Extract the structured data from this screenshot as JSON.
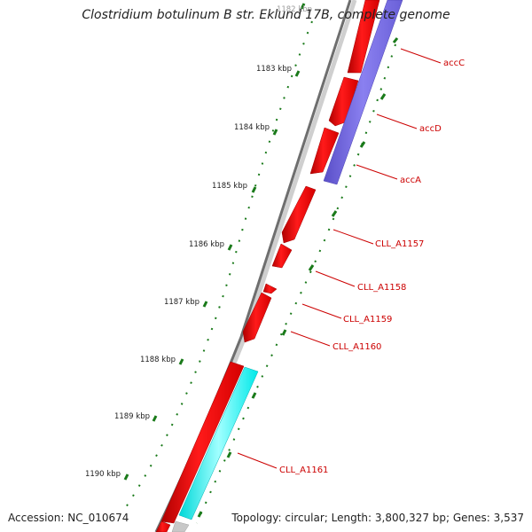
{
  "title": "Clostridium botulinum B str. Eklund 17B, complete genome",
  "footer": {
    "accession": "Accession: NC_010674",
    "topology": "Topology: circular; Length: 3,800,327 bp; Genes: 3,537"
  },
  "colors": {
    "backbone": "#7a7a7a",
    "forward_gene": "#ff0000",
    "reverse_blue": "#7b6fe0",
    "reverse_cyan": "#00ffff",
    "gene_label": "#cc0000",
    "tick": "#1a7a1a"
  },
  "ticks": [
    {
      "label": "1182 kbp"
    },
    {
      "label": "1183 kbp"
    },
    {
      "label": "1184 kbp"
    },
    {
      "label": "1185 kbp"
    },
    {
      "label": "1186 kbp"
    },
    {
      "label": "1187 kbp"
    },
    {
      "label": "1188 kbp"
    },
    {
      "label": "1189 kbp"
    },
    {
      "label": "1190 kbp"
    }
  ],
  "gene_labels": [
    {
      "name": "accC"
    },
    {
      "name": "accD"
    },
    {
      "name": "accA"
    },
    {
      "name": "CLL_A1157"
    },
    {
      "name": "CLL_A1158"
    },
    {
      "name": "CLL_A1159"
    },
    {
      "name": "CLL_A1160"
    },
    {
      "name": "CLL_A1161"
    }
  ]
}
